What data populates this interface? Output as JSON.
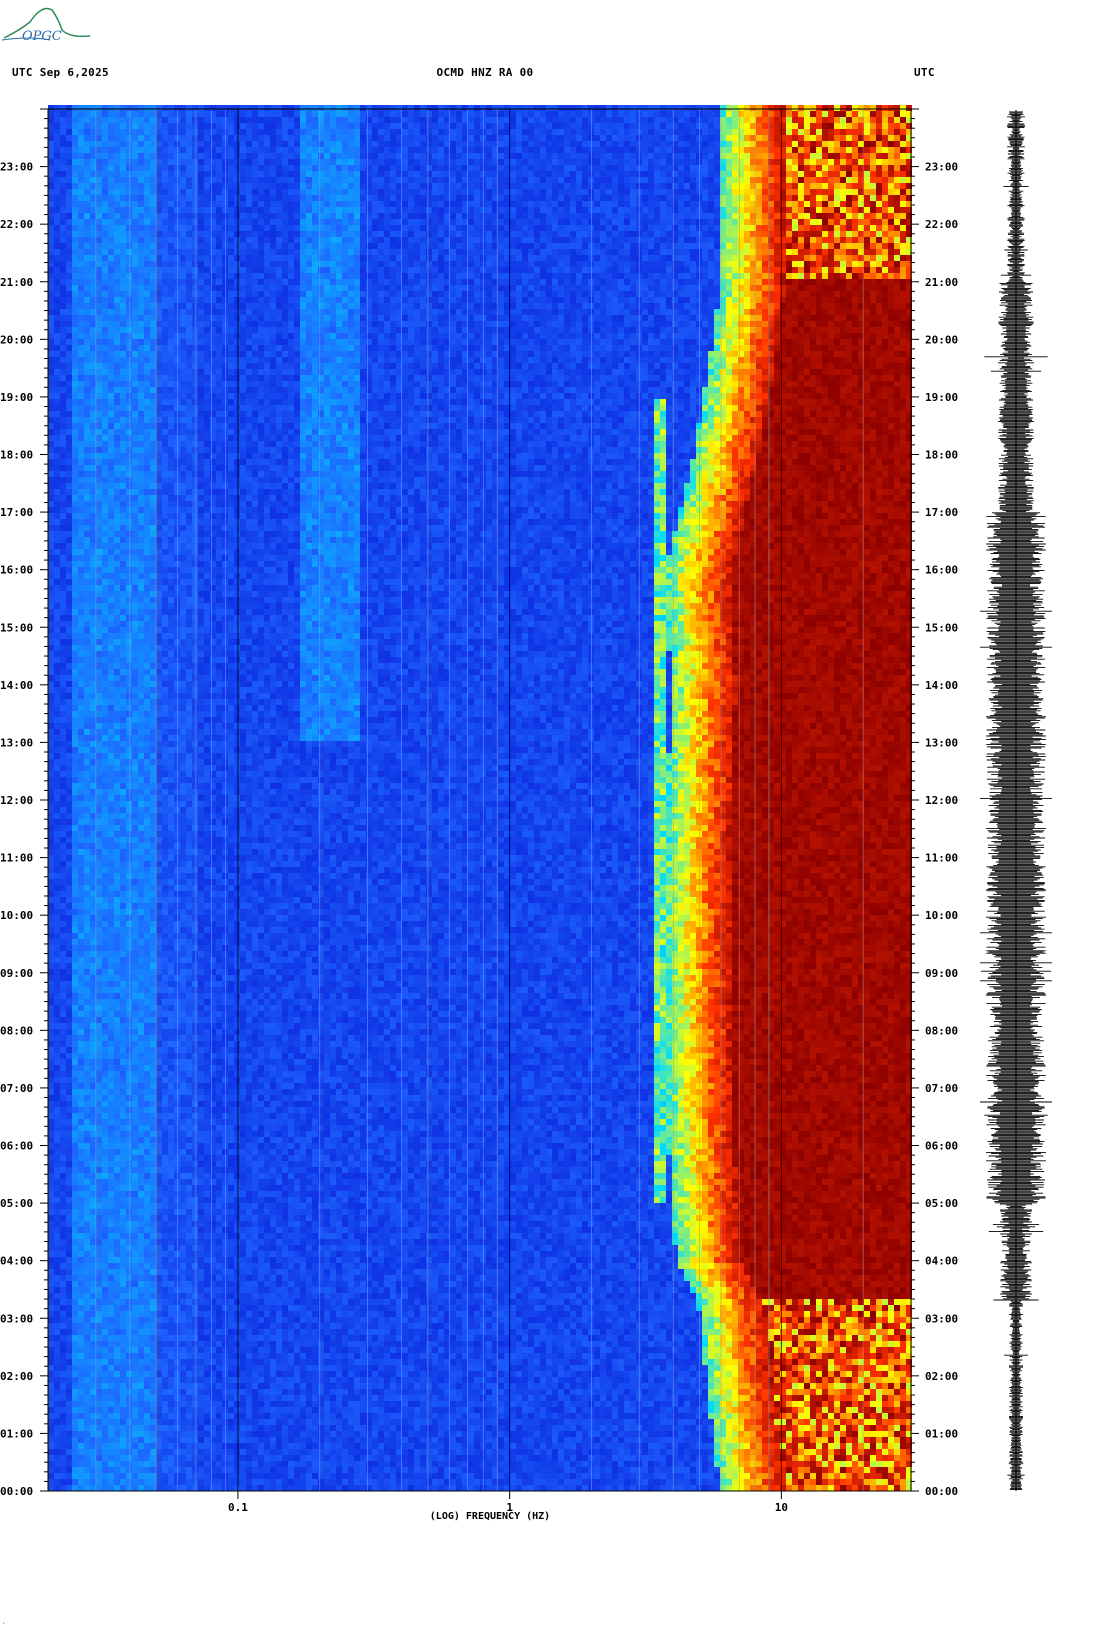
{
  "header": {
    "left": "UTC  Sep 6,2025",
    "center": "OCMD HNZ RA 00",
    "right": "UTC"
  },
  "logo": {
    "text": "OPGC",
    "color": "#2e8b57"
  },
  "footer": {
    "corner_mark": "·"
  },
  "chart_data": {
    "type": "heatmap",
    "title": "OCMD HNZ RA 00",
    "xlabel": "(LOG) FREQUENCY (HZ)",
    "ylabel": "",
    "x_scale": "log",
    "xlim": [
      0.02,
      30
    ],
    "x_ticks": [
      {
        "value": 0.1,
        "label": "0.1"
      },
      {
        "value": 1,
        "label": "1"
      },
      {
        "value": 10,
        "label": "10"
      }
    ],
    "ylim": [
      "00:00",
      "24:00"
    ],
    "y_ticks": [
      "00:00",
      "01:00",
      "02:00",
      "03:00",
      "04:00",
      "05:00",
      "06:00",
      "07:00",
      "08:00",
      "09:00",
      "10:00",
      "11:00",
      "12:00",
      "13:00",
      "14:00",
      "15:00",
      "16:00",
      "17:00",
      "18:00",
      "19:00",
      "20:00",
      "21:00",
      "22:00",
      "23:00"
    ],
    "colormap": [
      "#0000c8",
      "#1e64ff",
      "#00dcff",
      "#ffff00",
      "#ff3200",
      "#8c0000"
    ],
    "high_energy_edge_hz": [
      {
        "hour": 0,
        "hz": 9
      },
      {
        "hour": 2,
        "hz": 8
      },
      {
        "hour": 3.2,
        "hz": 7.5
      },
      {
        "hour": 4,
        "hz": 6.2
      },
      {
        "hour": 5,
        "hz": 6
      },
      {
        "hour": 6,
        "hz": 5.8
      },
      {
        "hour": 8,
        "hz": 5.7
      },
      {
        "hour": 10,
        "hz": 5.6
      },
      {
        "hour": 12,
        "hz": 5.8
      },
      {
        "hour": 14,
        "hz": 5.9
      },
      {
        "hour": 16,
        "hz": 5.7
      },
      {
        "hour": 17,
        "hz": 6.4
      },
      {
        "hour": 18,
        "hz": 7.2
      },
      {
        "hour": 20,
        "hz": 8.5
      },
      {
        "hour": 21,
        "hz": 9
      },
      {
        "hour": 22.5,
        "hz": 9
      },
      {
        "hour": 24,
        "hz": 9
      }
    ],
    "line_feature_hz": 3.6,
    "seismogram": "HNZ trace, amplitude increasing from 03:00 to 17:00, lower 00:00-03:00 and 21:00-24:00"
  }
}
